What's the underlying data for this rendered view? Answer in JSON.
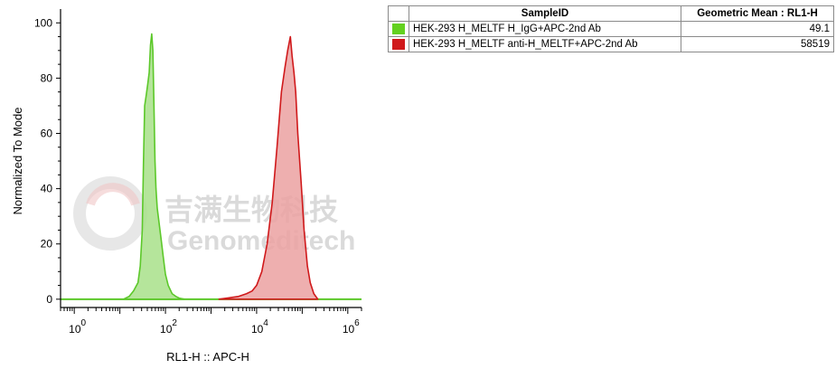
{
  "chart_data": {
    "type": "area",
    "xlabel": "RL1-H :: APC-H",
    "ylabel": "Normalized To Mode",
    "x_scale": "log",
    "xlim": [
      0.5,
      2000000
    ],
    "ylim": [
      -3,
      105
    ],
    "y_ticks": [
      "0",
      "20",
      "40",
      "60",
      "80",
      "100"
    ],
    "x_ticks": [
      {
        "base": "10",
        "exp": "0"
      },
      {
        "base": "10",
        "exp": "2"
      },
      {
        "base": "10",
        "exp": "4"
      },
      {
        "base": "10",
        "exp": "6"
      }
    ],
    "series": [
      {
        "name": "HEK-293 H_MELTF H_IgG+APC-2nd Ab",
        "fill": "#a8e08a",
        "stroke": "#5cc82a",
        "x": [
          12,
          16,
          20,
          25,
          28,
          31,
          33,
          35,
          38,
          41,
          44,
          47,
          50,
          53,
          56,
          59,
          62,
          66,
          72,
          80,
          90,
          100,
          115,
          140,
          170,
          200,
          260
        ],
        "y": [
          0,
          1,
          3,
          6,
          12,
          25,
          50,
          70,
          74,
          78,
          82,
          92,
          96,
          90,
          70,
          50,
          40,
          33,
          28,
          22,
          15,
          9,
          5,
          2,
          1,
          0.4,
          0
        ]
      },
      {
        "name": "HEK-293 H_MELTF anti-H_MELTF+APC-2nd Ab",
        "fill": "#eba1a1",
        "stroke": "#d0191b",
        "x": [
          1500,
          2500,
          4000,
          6000,
          8000,
          10000,
          13000,
          17000,
          22000,
          28000,
          35000,
          42000,
          48000,
          55000,
          60000,
          66000,
          72000,
          80000,
          95000,
          110000,
          130000,
          150000,
          180000,
          220000
        ],
        "y": [
          0,
          0.5,
          1,
          2,
          3,
          5,
          10,
          20,
          35,
          55,
          75,
          84,
          90,
          95,
          88,
          82,
          75,
          60,
          42,
          25,
          12,
          6,
          2,
          0
        ]
      }
    ]
  },
  "watermark": {
    "cn": "吉满生物科技",
    "en": "Genomeditech"
  },
  "legend_table": {
    "header_sample": "SampleID",
    "header_metric": "Geometric Mean : RL1-H",
    "rows": [
      {
        "color": "#63d11f",
        "sample": "HEK-293 H_MELTF H_IgG+APC-2nd Ab",
        "value": "49.1"
      },
      {
        "color": "#d0191b",
        "sample": "HEK-293 H_MELTF anti-H_MELTF+APC-2nd Ab",
        "value": "58519"
      }
    ]
  }
}
